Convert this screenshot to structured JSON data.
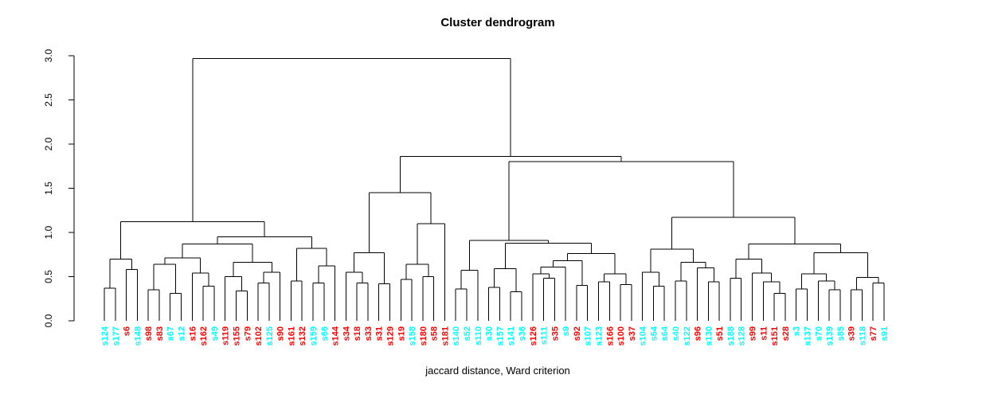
{
  "chart_data": {
    "type": "dendrogram",
    "title": "Cluster dendrogram",
    "caption": "jaccard distance, Ward criterion",
    "ylim": [
      0,
      3
    ],
    "y_ticks": [
      "0.0",
      "0.5",
      "1.0",
      "1.5",
      "2.0",
      "2.5",
      "3.0"
    ],
    "grid": "off",
    "legend": "none",
    "line_color": "#000000",
    "label_colors": {
      "red": "#FF0000",
      "cyan": "#00FFFF"
    },
    "leaves": [
      {
        "label": "s124",
        "color": "cyan"
      },
      {
        "label": "s177",
        "color": "cyan"
      },
      {
        "label": "s6",
        "color": "red"
      },
      {
        "label": "s148",
        "color": "cyan"
      },
      {
        "label": "s98",
        "color": "red"
      },
      {
        "label": "s83",
        "color": "red"
      },
      {
        "label": "s67",
        "color": "cyan"
      },
      {
        "label": "s12",
        "color": "cyan"
      },
      {
        "label": "s16",
        "color": "red"
      },
      {
        "label": "s162",
        "color": "red"
      },
      {
        "label": "s49",
        "color": "cyan"
      },
      {
        "label": "s119",
        "color": "red"
      },
      {
        "label": "s155",
        "color": "red"
      },
      {
        "label": "s79",
        "color": "red"
      },
      {
        "label": "s102",
        "color": "red"
      },
      {
        "label": "s125",
        "color": "cyan"
      },
      {
        "label": "s90",
        "color": "red"
      },
      {
        "label": "s161",
        "color": "red"
      },
      {
        "label": "s132",
        "color": "red"
      },
      {
        "label": "s159",
        "color": "cyan"
      },
      {
        "label": "s66",
        "color": "cyan"
      },
      {
        "label": "s144",
        "color": "red"
      },
      {
        "label": "s34",
        "color": "red"
      },
      {
        "label": "s18",
        "color": "red"
      },
      {
        "label": "s33",
        "color": "red"
      },
      {
        "label": "s31",
        "color": "red"
      },
      {
        "label": "s129",
        "color": "red"
      },
      {
        "label": "s19",
        "color": "red"
      },
      {
        "label": "s158",
        "color": "cyan"
      },
      {
        "label": "s180",
        "color": "red"
      },
      {
        "label": "s58",
        "color": "red"
      },
      {
        "label": "s181",
        "color": "red"
      },
      {
        "label": "s140",
        "color": "cyan"
      },
      {
        "label": "s52",
        "color": "cyan"
      },
      {
        "label": "s110",
        "color": "cyan"
      },
      {
        "label": "s30",
        "color": "cyan"
      },
      {
        "label": "s157",
        "color": "cyan"
      },
      {
        "label": "s141",
        "color": "cyan"
      },
      {
        "label": "s36",
        "color": "cyan"
      },
      {
        "label": "s126",
        "color": "red"
      },
      {
        "label": "s111",
        "color": "cyan"
      },
      {
        "label": "s35",
        "color": "red"
      },
      {
        "label": "s9",
        "color": "cyan"
      },
      {
        "label": "s92",
        "color": "red"
      },
      {
        "label": "s107",
        "color": "cyan"
      },
      {
        "label": "s123",
        "color": "cyan"
      },
      {
        "label": "s166",
        "color": "red"
      },
      {
        "label": "s100",
        "color": "red"
      },
      {
        "label": "s37",
        "color": "red"
      },
      {
        "label": "s104",
        "color": "cyan"
      },
      {
        "label": "s54",
        "color": "cyan"
      },
      {
        "label": "s64",
        "color": "cyan"
      },
      {
        "label": "s40",
        "color": "cyan"
      },
      {
        "label": "s122",
        "color": "cyan"
      },
      {
        "label": "s96",
        "color": "red"
      },
      {
        "label": "s130",
        "color": "cyan"
      },
      {
        "label": "s51",
        "color": "red"
      },
      {
        "label": "s188",
        "color": "cyan"
      },
      {
        "label": "s128",
        "color": "cyan"
      },
      {
        "label": "s99",
        "color": "red"
      },
      {
        "label": "s11",
        "color": "red"
      },
      {
        "label": "s151",
        "color": "red"
      },
      {
        "label": "s28",
        "color": "red"
      },
      {
        "label": "s3",
        "color": "cyan"
      },
      {
        "label": "s137",
        "color": "cyan"
      },
      {
        "label": "s70",
        "color": "cyan"
      },
      {
        "label": "s139",
        "color": "cyan"
      },
      {
        "label": "s85",
        "color": "cyan"
      },
      {
        "label": "s39",
        "color": "red"
      },
      {
        "label": "s118",
        "color": "cyan"
      },
      {
        "label": "s77",
        "color": "red"
      },
      {
        "label": "s91",
        "color": "cyan"
      }
    ],
    "tree": [
      2.97,
      [
        1.12,
        [
          0.7,
          [
            0.37,
            "s124",
            "s177"
          ],
          [
            0.58,
            "s6",
            "s148"
          ]
        ],
        [
          0.95,
          [
            0.87,
            [
              0.71,
              [
                0.64,
                [
                  0.35,
                  "s98",
                  "s83"
                ],
                [
                  0.31,
                  "s67",
                  "s12"
                ]
              ],
              [
                0.54,
                "s16",
                [
                  0.39,
                  "s162",
                  "s49"
                ]
              ]
            ],
            [
              0.66,
              [
                0.5,
                "s119",
                [
                  0.34,
                  "s155",
                  "s79"
                ]
              ],
              [
                0.55,
                [
                  0.43,
                  "s102",
                  "s125"
                ],
                "s90"
              ]
            ]
          ],
          [
            0.82,
            [
              0.45,
              "s161",
              "s132"
            ],
            [
              0.62,
              [
                0.43,
                "s159",
                "s66"
              ],
              "s144"
            ]
          ]
        ]
      ],
      [
        1.86,
        [
          1.45,
          [
            0.77,
            [
              0.55,
              "s34",
              [
                0.43,
                "s18",
                "s33"
              ]
            ],
            [
              0.42,
              "s31",
              "s129"
            ]
          ],
          [
            1.1,
            [
              0.64,
              [
                0.47,
                "s19",
                "s158"
              ],
              [
                0.5,
                "s180",
                "s58"
              ]
            ],
            "s181"
          ]
        ],
        [
          1.8,
          [
            0.91,
            [
              0.57,
              [
                0.36,
                "s140",
                "s52"
              ],
              "s110"
            ],
            [
              0.88,
              [
                0.59,
                [
                  0.38,
                  "s30",
                  "s157"
                ],
                [
                  0.33,
                  "s141",
                  "s36"
                ]
              ],
              [
                0.76,
                [
                  0.68,
                  [
                    0.61,
                    [
                      0.53,
                      "s126",
                      [
                        0.48,
                        "s111",
                        "s35"
                      ]
                    ],
                    "s9"
                  ],
                  [
                    0.4,
                    "s92",
                    "s107"
                  ]
                ],
                [
                  0.53,
                  [
                    0.44,
                    "s123",
                    "s166"
                  ],
                  [
                    0.41,
                    "s100",
                    "s37"
                  ]
                ]
              ]
            ]
          ],
          [
            1.17,
            [
              0.81,
              [
                0.55,
                "s104",
                [
                  0.39,
                  "s54",
                  "s64"
                ]
              ],
              [
                0.66,
                [
                  0.45,
                  "s40",
                  "s122"
                ],
                [
                  0.6,
                  "s96",
                  [
                    0.44,
                    "s130",
                    "s51"
                  ]
                ]
              ]
            ],
            [
              0.87,
              [
                0.7,
                [
                  0.48,
                  "s188",
                  "s128"
                ],
                [
                  0.54,
                  "s99",
                  [
                    0.44,
                    "s11",
                    [
                      0.31,
                      "s151",
                      "s28"
                    ]
                  ]
                ]
              ],
              [
                0.77,
                [
                  0.53,
                  [
                    0.36,
                    "s3",
                    "s137"
                  ],
                  [
                    0.45,
                    "s70",
                    [
                      0.35,
                      "s139",
                      "s85"
                    ]
                  ]
                ],
                [
                  0.49,
                  [
                    0.35,
                    "s39",
                    "s118"
                  ],
                  [
                    0.43,
                    "s77",
                    "s91"
                  ]
                ]
              ]
            ]
          ]
        ]
      ]
    ]
  }
}
